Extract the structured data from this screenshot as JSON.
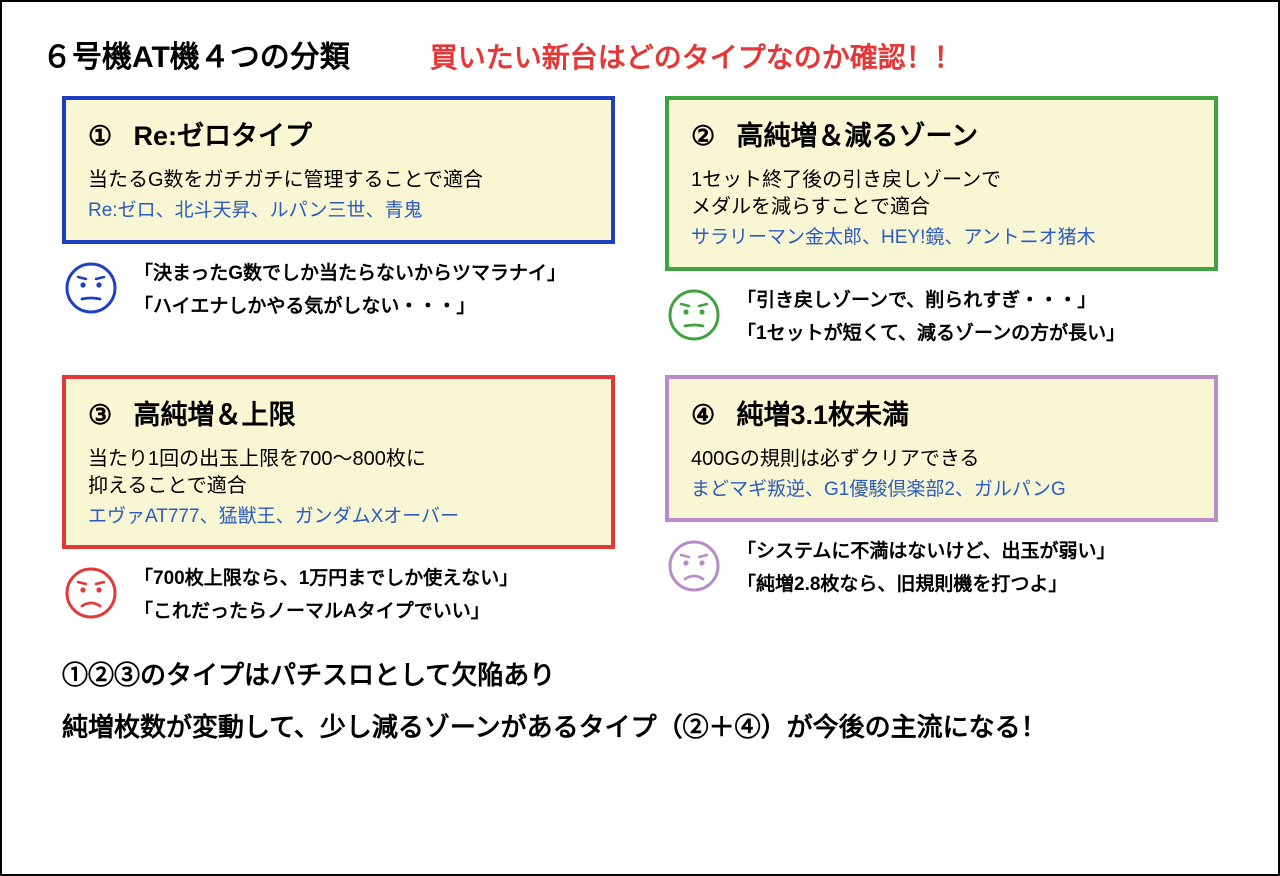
{
  "colors": {
    "border_blue": "#1e3fbf",
    "border_green": "#3fa43f",
    "border_red": "#e23838",
    "border_purple": "#b98cc9",
    "box_bg": "#f9f6d3",
    "subtitle_red": "#e23838",
    "example_blue": "#2b5bbf",
    "text_black": "#000000"
  },
  "header": {
    "title": "６号機AT機４つの分類",
    "subtitle": "買いたい新台はどのタイプなのか確認！！"
  },
  "types": [
    {
      "num": "①",
      "title": "Re:ゼロタイプ",
      "desc": "当たるG数をガチガチに管理することで適合",
      "examples": "Re:ゼロ、北斗天昇、ルパン三世、青鬼",
      "border_class": "blue",
      "face_color": "#1e3fbf",
      "comments": [
        "「決まったG数でしか当たらないからツマラナイ」",
        "「ハイエナしかやる気がしない・・・」"
      ]
    },
    {
      "num": "②",
      "title": "高純増＆減るゾーン",
      "desc": "1セット終了後の引き戻しゾーンで\nメダルを減らすことで適合",
      "examples": "サラリーマン金太郎、HEY!鏡、アントニオ猪木",
      "border_class": "green",
      "face_color": "#3fa43f",
      "comments": [
        "「引き戻しゾーンで、削られすぎ・・・」",
        "「1セットが短くて、減るゾーンの方が長い」"
      ]
    },
    {
      "num": "③",
      "title": "高純増＆上限",
      "desc": "当たり1回の出玉上限を700〜800枚に\n抑えることで適合",
      "examples": "エヴァAT777、猛獣王、ガンダムXオーバー",
      "border_class": "red",
      "face_color": "#e23838",
      "comments": [
        "「700枚上限なら、1万円までしか使えない」",
        "「これだったらノーマルAタイプでいい」"
      ]
    },
    {
      "num": "④",
      "title": "純増3.1枚未満",
      "desc": "400Gの規則は必ずクリアできる",
      "examples": "まどマギ叛逆、G1優駿倶楽部2、ガルパンG",
      "border_class": "purple",
      "face_color": "#b98cc9",
      "comments": [
        "「システムに不満はないけど、出玉が弱い」",
        "「純増2.8枚なら、旧規則機を打つよ」"
      ]
    }
  ],
  "footer": {
    "line1": "①②③のタイプはパチスロとして欠陥あり",
    "line2": "純増枚数が変動して、少し減るゾーンがあるタイプ（②＋④）が今後の主流になる！"
  }
}
